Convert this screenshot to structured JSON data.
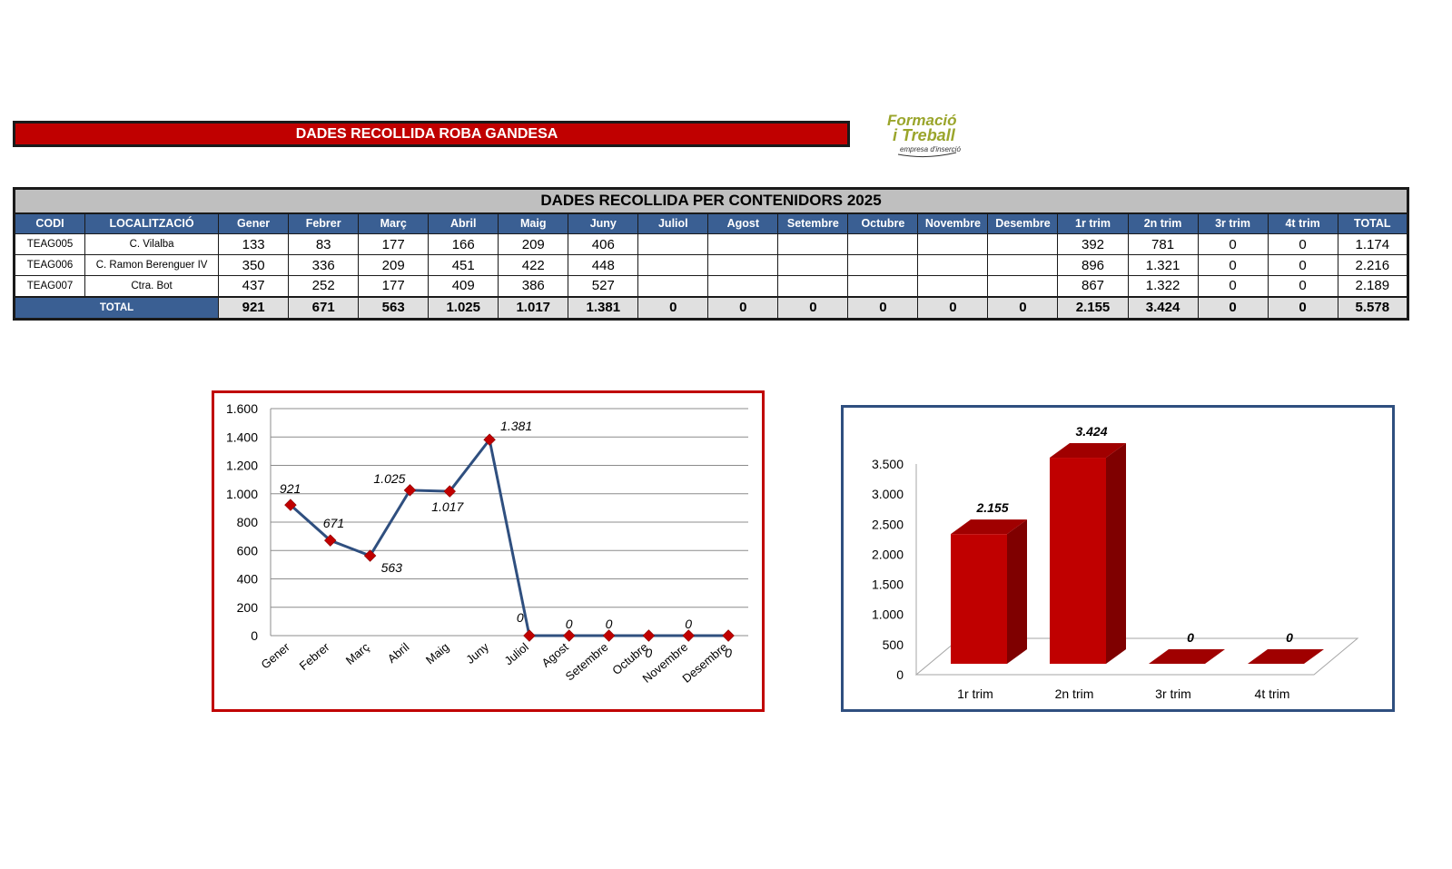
{
  "header": {
    "banner_title": "DADES RECOLLIDA ROBA GANDESA",
    "logo_text_line1": "Formació",
    "logo_text_line2": "i Treball",
    "logo_text_line3": "empresa d'inserció"
  },
  "table": {
    "caption": "DADES RECOLLIDA PER CONTENIDORS 2025",
    "headers": [
      "CODI",
      "LOCALITZACIÓ",
      "Gener",
      "Febrer",
      "Març",
      "Abril",
      "Maig",
      "Juny",
      "Juliol",
      "Agost",
      "Setembre",
      "Octubre",
      "Novembre",
      "Desembre",
      "1r trim",
      "2n trim",
      "3r trim",
      "4t trim",
      "TOTAL"
    ],
    "rows": [
      [
        "TEAG005",
        "C. Vilalba",
        "133",
        "83",
        "177",
        "166",
        "209",
        "406",
        "",
        "",
        "",
        "",
        "",
        "",
        "392",
        "781",
        "0",
        "0",
        "1.174"
      ],
      [
        "TEAG006",
        "C. Ramon Berenguer IV",
        "350",
        "336",
        "209",
        "451",
        "422",
        "448",
        "",
        "",
        "",
        "",
        "",
        "",
        "896",
        "1.321",
        "0",
        "0",
        "2.216"
      ],
      [
        "TEAG007",
        "Ctra. Bot",
        "437",
        "252",
        "177",
        "409",
        "386",
        "527",
        "",
        "",
        "",
        "",
        "",
        "",
        "867",
        "1.322",
        "0",
        "0",
        "2.189"
      ]
    ],
    "total_row": [
      "TOTAL",
      "921",
      "671",
      "563",
      "1.025",
      "1.017",
      "1.381",
      "0",
      "0",
      "0",
      "0",
      "0",
      "0",
      "2.155",
      "3.424",
      "0",
      "0",
      "5.578"
    ]
  },
  "colors": {
    "banner_red": "#c00000",
    "header_blue": "#3a5f93",
    "line_series": "#2f4f7f",
    "marker": "#c00000",
    "bar_front": "#c00000",
    "bar_side": "#7f0000",
    "bar_top": "#a00000"
  },
  "chart_data": [
    {
      "type": "line",
      "categories": [
        "Gener",
        "Febrer",
        "Març",
        "Abril",
        "Maig",
        "Juny",
        "Juliol",
        "Agost",
        "Setembre",
        "Octubre",
        "Novembre",
        "Desembre"
      ],
      "values": [
        921,
        671,
        563,
        1025,
        1017,
        1381,
        0,
        0,
        0,
        0,
        0,
        0
      ],
      "data_labels": [
        "921",
        "671",
        "563",
        "1.025",
        "1.017",
        "1.381",
        "0",
        "0",
        "0",
        "0",
        "0",
        "0"
      ],
      "ylim": [
        0,
        1600
      ],
      "yticks": [
        0,
        200,
        400,
        600,
        800,
        1000,
        1200,
        1400,
        1600
      ],
      "ytick_labels": [
        "0",
        "200",
        "400",
        "600",
        "800",
        "1.000",
        "1.200",
        "1.400",
        "1.600"
      ],
      "grid": true,
      "legend": false
    },
    {
      "type": "bar",
      "style": "3d",
      "categories": [
        "1r trim",
        "2n trim",
        "3r trim",
        "4t trim"
      ],
      "values": [
        2155,
        3424,
        0,
        0
      ],
      "data_labels": [
        "2.155",
        "3.424",
        "0",
        "0"
      ],
      "ylim": [
        0,
        3500
      ],
      "yticks": [
        0,
        500,
        1000,
        1500,
        2000,
        2500,
        3000,
        3500
      ],
      "ytick_labels": [
        "0",
        "500",
        "1.000",
        "1.500",
        "2.000",
        "2.500",
        "3.000",
        "3.500"
      ],
      "grid": false,
      "legend": false
    }
  ]
}
